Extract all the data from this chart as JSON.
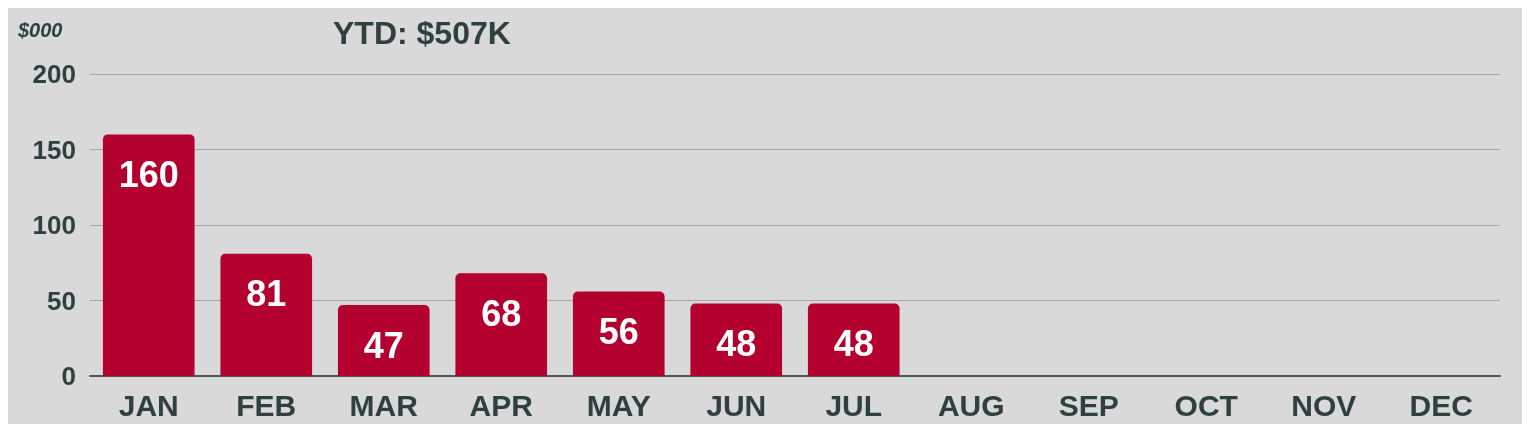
{
  "chart_data": {
    "type": "bar",
    "title": "YTD: $507K",
    "ylabel": "$000",
    "categories": [
      "JAN",
      "FEB",
      "MAR",
      "APR",
      "MAY",
      "JUN",
      "JUL",
      "AUG",
      "SEP",
      "OCT",
      "NOV",
      "DEC"
    ],
    "values": [
      160,
      81,
      47,
      68,
      56,
      48,
      48,
      null,
      null,
      null,
      null,
      null
    ],
    "color": "#b3002f",
    "ylim": [
      0,
      200
    ],
    "yticks": [
      0,
      50,
      100,
      150,
      200
    ],
    "grid": "y",
    "data_labels": true
  }
}
